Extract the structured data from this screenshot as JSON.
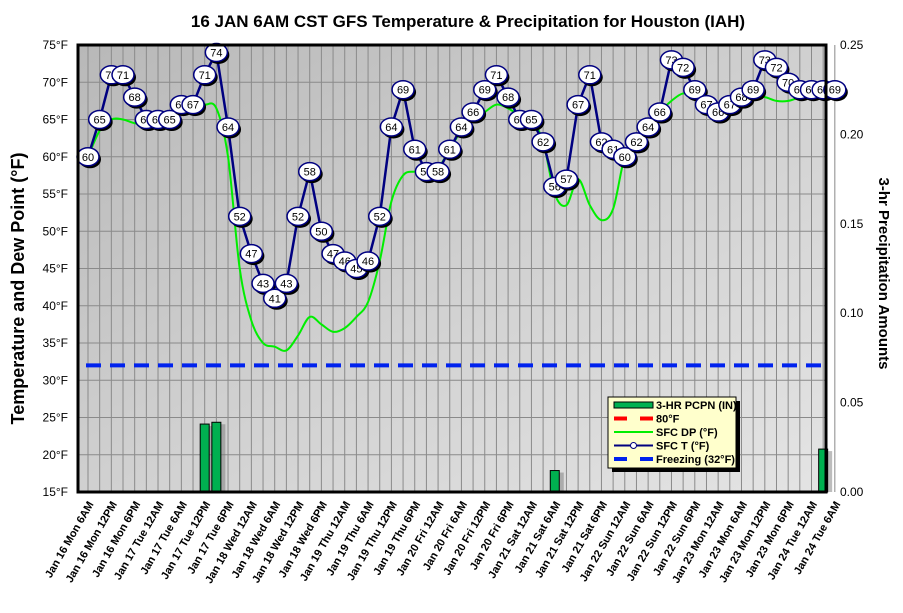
{
  "chart_data": {
    "type": "line",
    "title": "16 JAN 6AM CST GFS Temperature & Precipitation for Houston (IAH)",
    "ylabel": "Temperature and Dew Point (°F)",
    "y2label": "3-hr Precipitation Amounts",
    "ylim": [
      15,
      75
    ],
    "y2lim": [
      0,
      0.25
    ],
    "yticks": [
      "75°F",
      "70°F",
      "65°F",
      "60°F",
      "55°F",
      "50°F",
      "45°F",
      "40°F",
      "35°F",
      "30°F",
      "25°F",
      "20°F",
      "15°F"
    ],
    "y2ticks": [
      "0.25",
      "0.20",
      "0.15",
      "0.10",
      "0.05",
      "0.00"
    ],
    "grid": true,
    "legend_position": "bottom-right",
    "x_labels": [
      "Jan 16 Mon 6AM",
      "Jan 16 Mon 12PM",
      "Jan 16 Mon 6PM",
      "Jan 17 Tue 12AM",
      "Jan 17 Tue 6AM",
      "Jan 17 Tue 12PM",
      "Jan 17 Tue 6PM",
      "Jan 18 Wed 12AM",
      "Jan 18 Wed 6AM",
      "Jan 18 Wed 12PM",
      "Jan 18 Wed 6PM",
      "Jan 19 Thu 12AM",
      "Jan 19 Thu 6AM",
      "Jan 19 Thu 12PM",
      "Jan 19 Thu 6PM",
      "Jan 20 Fri 12AM",
      "Jan 20 Fri 6AM",
      "Jan 20 Fri 12PM",
      "Jan 20 Fri 6PM",
      "Jan 21 Sat 12AM",
      "Jan 21 Sat 6AM",
      "Jan 21 Sat 12PM",
      "Jan 21 Sat 6PM",
      "Jan 22 Sun 12AM",
      "Jan 22 Sun 6AM",
      "Jan 22 Sun 12PM",
      "Jan 22 Sun 6PM",
      "Jan 23 Mon 12AM",
      "Jan 23 Mon 6AM",
      "Jan 23 Mon 12PM",
      "Jan 23 Mon 6PM",
      "Jan 24 Tue 12AM",
      "Jan 24 Tue 6AM"
    ],
    "x_step_hours": 3,
    "series": [
      {
        "name": "SFC T (°F)",
        "kind": "line-markers-labeled",
        "color": "#000080",
        "values": [
          60,
          65,
          71,
          71,
          68,
          65,
          65,
          65,
          67,
          67,
          71,
          74,
          64,
          52,
          47,
          43,
          41,
          43,
          52,
          58,
          50,
          47,
          46,
          45,
          46,
          52,
          64,
          69,
          61,
          58,
          58,
          61,
          64,
          66,
          69,
          71,
          68,
          65,
          65,
          62,
          56,
          57,
          67,
          71,
          62,
          61,
          60,
          62,
          64,
          66,
          73,
          72,
          69,
          67,
          66,
          67,
          68,
          69,
          73,
          72,
          70,
          69,
          69,
          69,
          69
        ]
      },
      {
        "name": "SFC DP (°F)",
        "kind": "smooth-line",
        "color": "#00ee00",
        "values": [
          60,
          63.5,
          65,
          65,
          64.5,
          64.5,
          64.5,
          65,
          66,
          67,
          67,
          66.5,
          60,
          45,
          38,
          35,
          34.5,
          34,
          36,
          38.5,
          37.5,
          36.5,
          37,
          38.5,
          40.5,
          46,
          54,
          57.5,
          58,
          58,
          58.5,
          61,
          63.5,
          65,
          66,
          67,
          66.5,
          65.5,
          65,
          62,
          55,
          53.5,
          57,
          53.5,
          51.5,
          53,
          60,
          62,
          64,
          66,
          67.5,
          68.5,
          68,
          66.5,
          66,
          67,
          67.5,
          68,
          68,
          67.5,
          67.5,
          68,
          68.5,
          68.5,
          68.5
        ]
      },
      {
        "name": "Freezing (32°F)",
        "kind": "dashed-line",
        "color": "#0022ee",
        "value": 32
      },
      {
        "name": "80°F",
        "kind": "dashed-line",
        "color": "#ff0000",
        "value": 80
      },
      {
        "name": "3-HR PCPN (IN)",
        "kind": "bar",
        "axis": "right",
        "color": "#00b050",
        "bars": [
          {
            "index": 10,
            "value": 0.038
          },
          {
            "index": 11,
            "value": 0.039
          },
          {
            "index": 40,
            "value": 0.012
          },
          {
            "index": 63,
            "value": 0.024
          }
        ]
      }
    ],
    "legend": [
      "3-HR PCPN  (IN)",
      "80°F",
      "SFC DP (°F)",
      "SFC T (°F)",
      "Freezing (32°F)"
    ]
  }
}
